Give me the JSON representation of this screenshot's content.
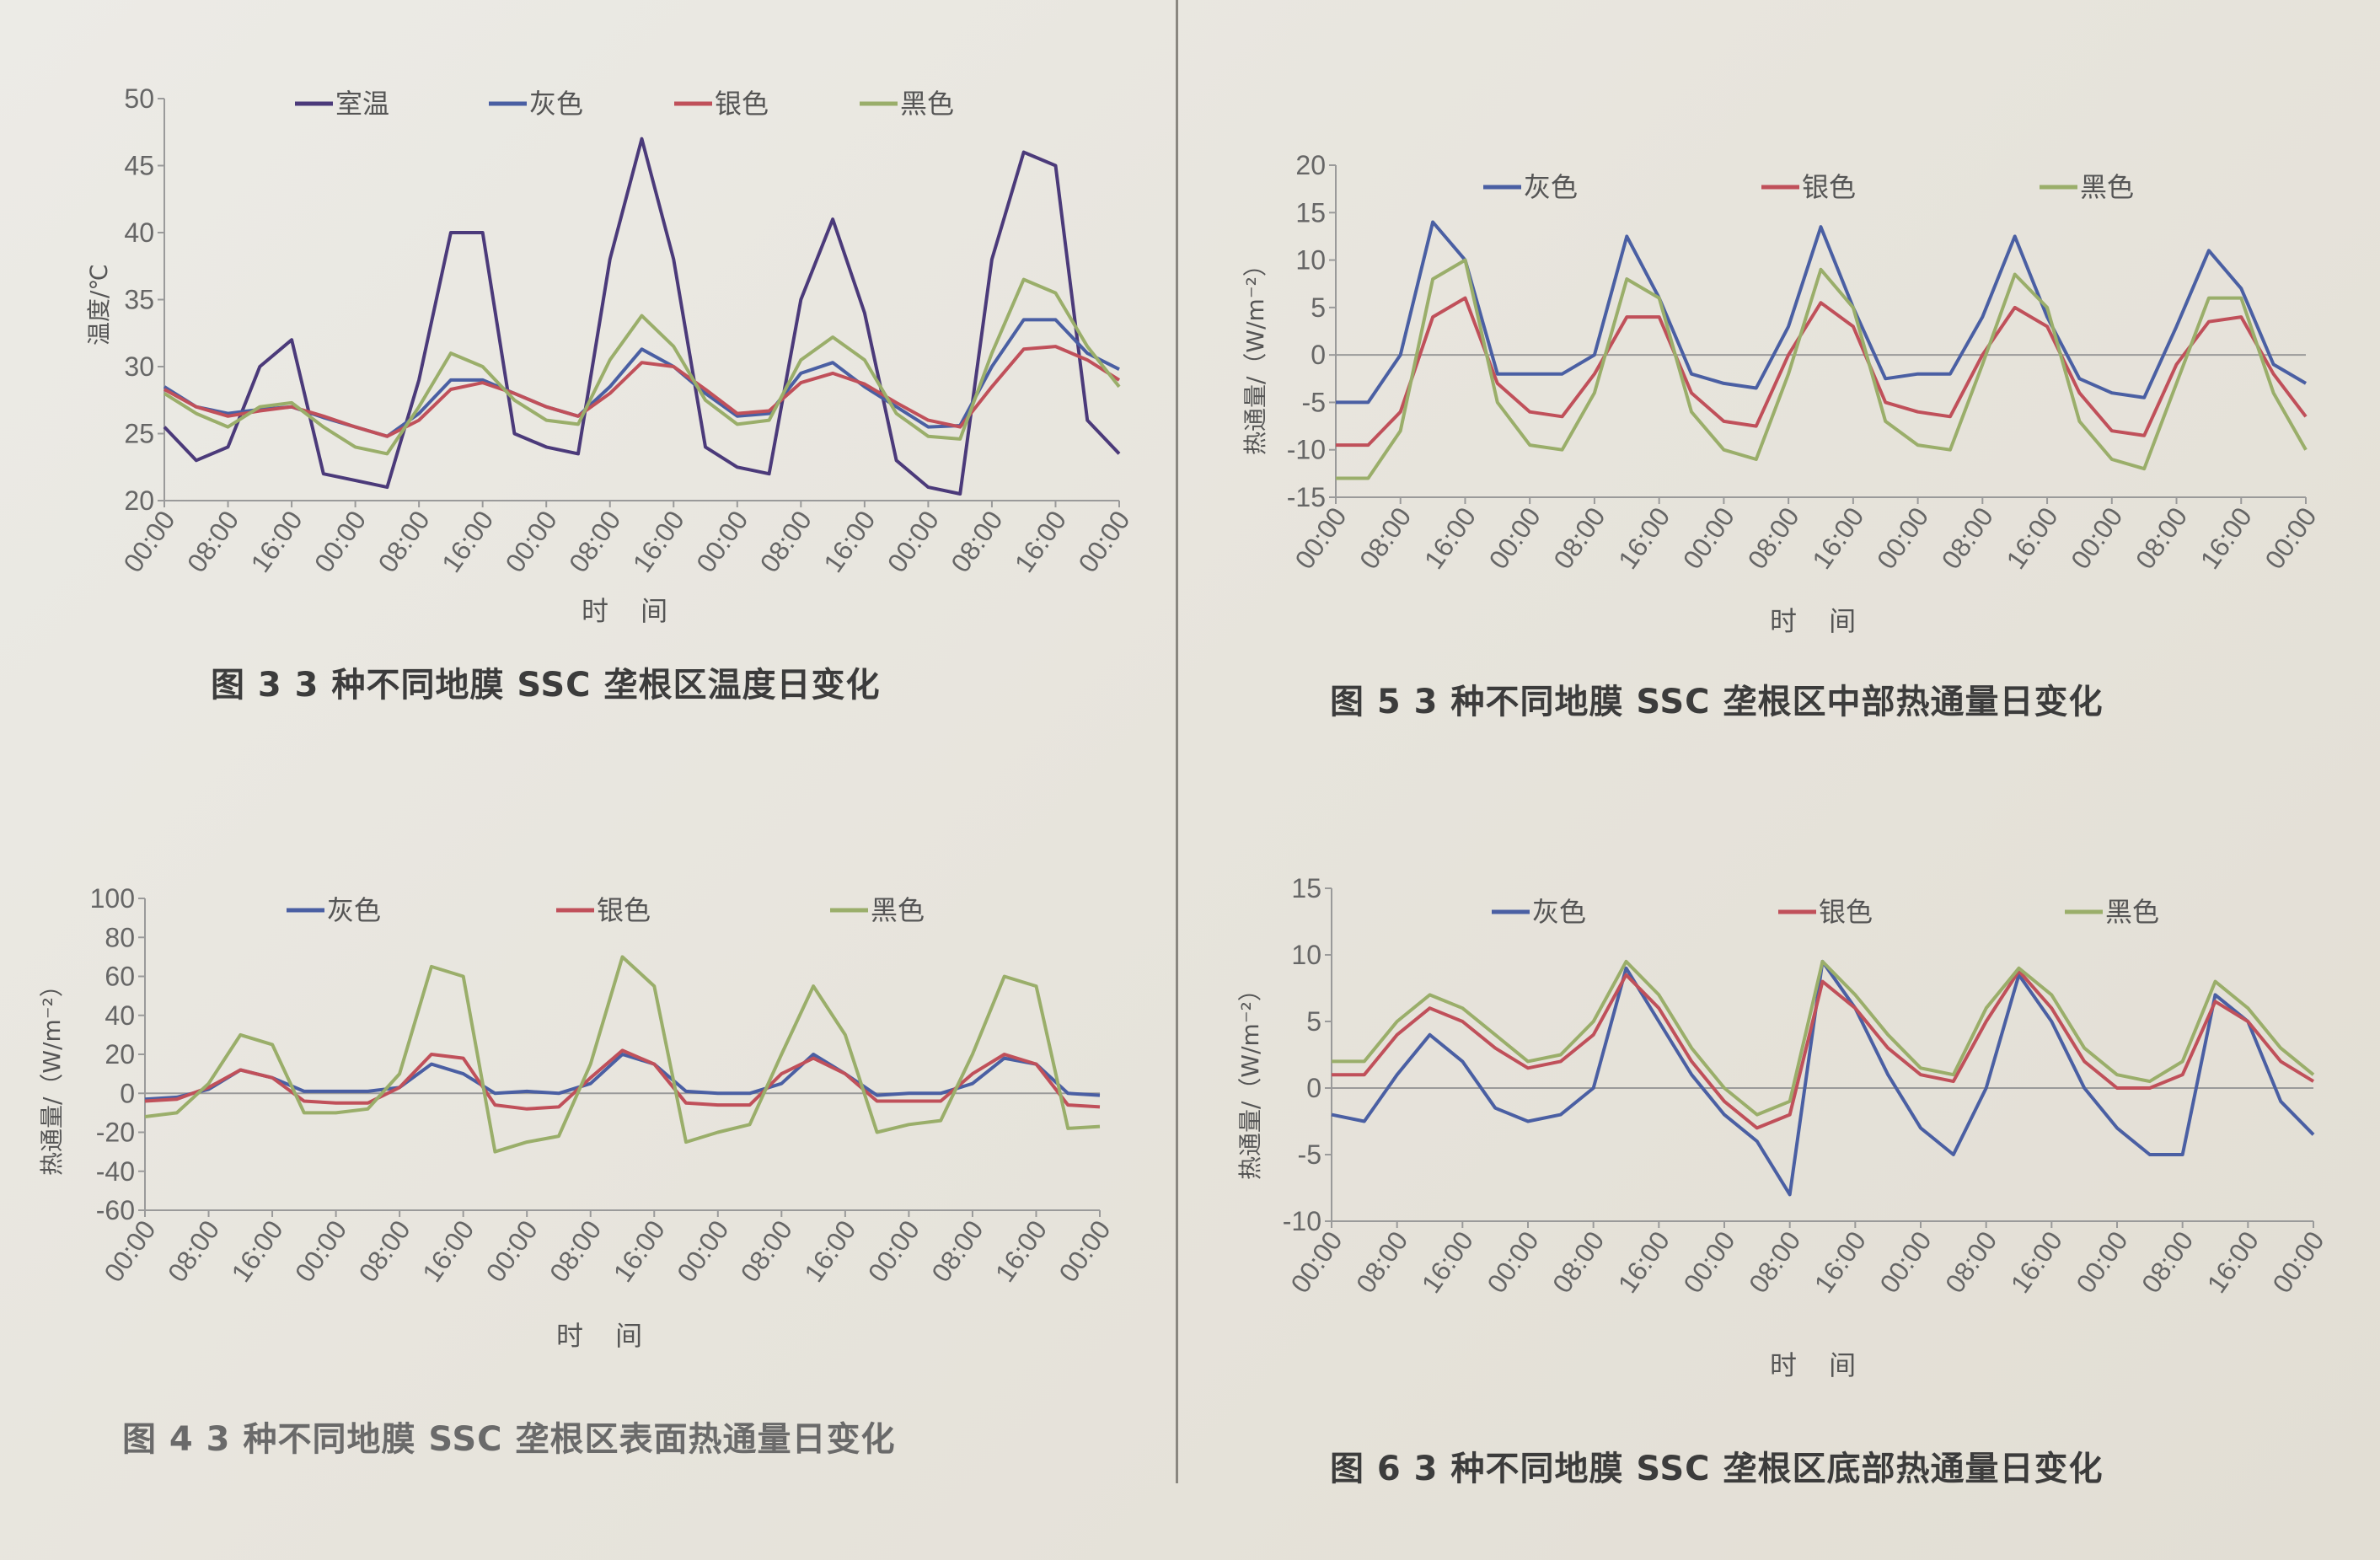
{
  "colors": {
    "室温": "#4b3a7a",
    "灰色": "#4a5fa3",
    "银色": "#c0505a",
    "黑色": "#9aae6a",
    "axis": "#9a9a9a"
  },
  "chart_data": [
    {
      "type": "line",
      "title": "图 3  3 种不同地膜 SSC 垄根区温度日变化",
      "xlabel": "时 间",
      "ylabel": "温度/℃",
      "ylim": [
        20,
        50
      ],
      "yticks": [
        20,
        25,
        30,
        35,
        40,
        45,
        50
      ],
      "x_hours": [
        0,
        4,
        8,
        12,
        16,
        20,
        24,
        28,
        32,
        36,
        40,
        44,
        48,
        52,
        56,
        60,
        64,
        68,
        72,
        76,
        80,
        84,
        88,
        92,
        96,
        100,
        104,
        108,
        112,
        116,
        120
      ],
      "xtick_labels": [
        "00:00",
        "08:00",
        "16:00",
        "00:00",
        "08:00",
        "16:00",
        "00:00",
        "08:00",
        "16:00",
        "00:00",
        "08:00",
        "16:00",
        "00:00",
        "08:00",
        "16:00",
        "00:00"
      ],
      "zero_line": false,
      "series": [
        {
          "name": "室温",
          "values": [
            25.5,
            23,
            24,
            30,
            32,
            22,
            21.5,
            21,
            29,
            40,
            40,
            25,
            24,
            23.5,
            38,
            47,
            38,
            24,
            22.5,
            22,
            35,
            41,
            34,
            23,
            21,
            20.5,
            38,
            46,
            45,
            26,
            23.5
          ]
        },
        {
          "name": "灰色",
          "values": [
            28.5,
            27,
            26.5,
            26.8,
            27,
            26.2,
            25.5,
            24.8,
            26.5,
            29,
            29,
            28,
            27,
            26.3,
            28.5,
            31.3,
            30,
            28,
            26.3,
            26.5,
            29.5,
            30.3,
            28.5,
            27,
            25.5,
            25.6,
            30,
            33.5,
            33.5,
            31,
            29.8
          ]
        },
        {
          "name": "银色",
          "values": [
            28.3,
            27,
            26.3,
            26.7,
            27,
            26.3,
            25.5,
            24.8,
            26,
            28.3,
            28.8,
            28,
            27,
            26.3,
            28,
            30.3,
            30,
            28.3,
            26.5,
            26.7,
            28.8,
            29.5,
            28.7,
            27.3,
            26,
            25.5,
            28.5,
            31.3,
            31.5,
            30.5,
            29
          ]
        },
        {
          "name": "黑色",
          "values": [
            28,
            26.5,
            25.5,
            27,
            27.3,
            25.5,
            24,
            23.5,
            27,
            31,
            30,
            27.5,
            26,
            25.7,
            30.5,
            33.8,
            31.5,
            27.5,
            25.7,
            26,
            30.5,
            32.2,
            30.5,
            26.5,
            24.8,
            24.6,
            31,
            36.5,
            35.5,
            31.5,
            28.5
          ]
        }
      ]
    },
    {
      "type": "line",
      "title": "图 4  3 种不同地膜 SSC 垄根区表面热通量日变化",
      "xlabel": "时 间",
      "ylabel": "热通量/（W/m⁻²）",
      "ylim": [
        -60,
        100
      ],
      "yticks": [
        -60,
        -40,
        -20,
        0,
        20,
        40,
        60,
        80,
        100
      ],
      "x_hours": [
        0,
        4,
        8,
        12,
        16,
        20,
        24,
        28,
        32,
        36,
        40,
        44,
        48,
        52,
        56,
        60,
        64,
        68,
        72,
        76,
        80,
        84,
        88,
        92,
        96,
        100,
        104,
        108,
        112,
        116,
        120
      ],
      "xtick_labels": [
        "00:00",
        "08:00",
        "16:00",
        "00:00",
        "08:00",
        "16:00",
        "00:00",
        "08:00",
        "16:00",
        "00:00",
        "08:00",
        "16:00",
        "00:00",
        "08:00",
        "16:00",
        "00:00"
      ],
      "zero_line": true,
      "series": [
        {
          "name": "灰色",
          "values": [
            -3,
            -2,
            2,
            12,
            8,
            1,
            1,
            1,
            3,
            15,
            10,
            0,
            1,
            0,
            5,
            20,
            15,
            1,
            0,
            0,
            5,
            20,
            10,
            -1,
            0,
            0,
            5,
            18,
            15,
            0,
            -1
          ]
        },
        {
          "name": "银色",
          "values": [
            -4,
            -3,
            3,
            12,
            8,
            -4,
            -5,
            -5,
            3,
            20,
            18,
            -6,
            -8,
            -7,
            8,
            22,
            15,
            -5,
            -6,
            -6,
            10,
            18,
            10,
            -4,
            -4,
            -4,
            10,
            20,
            15,
            -6,
            -7
          ]
        },
        {
          "name": "黑色",
          "values": [
            -12,
            -10,
            5,
            30,
            25,
            -10,
            -10,
            -8,
            10,
            65,
            60,
            -30,
            -25,
            -22,
            15,
            70,
            55,
            -25,
            -20,
            -16,
            20,
            55,
            30,
            -20,
            -16,
            -14,
            20,
            60,
            55,
            -18,
            -17
          ]
        }
      ]
    },
    {
      "type": "line",
      "title": "图 5  3 种不同地膜 SSC 垄根区中部热通量日变化",
      "xlabel": "时 间",
      "ylabel": "热通量/（W/m⁻²）",
      "ylim": [
        -15,
        20
      ],
      "yticks": [
        -15,
        -10,
        -5,
        0,
        5,
        10,
        15,
        20
      ],
      "x_hours": [
        0,
        4,
        8,
        12,
        16,
        20,
        24,
        28,
        32,
        36,
        40,
        44,
        48,
        52,
        56,
        60,
        64,
        68,
        72,
        76,
        80,
        84,
        88,
        92,
        96,
        100,
        104,
        108,
        112,
        116,
        120
      ],
      "xtick_labels": [
        "00:00",
        "08:00",
        "16:00",
        "00:00",
        "08:00",
        "16:00",
        "00:00",
        "08:00",
        "16:00",
        "00:00",
        "08:00",
        "16:00",
        "00:00",
        "08:00",
        "16:00",
        "00:00"
      ],
      "zero_line": true,
      "series": [
        {
          "name": "灰色",
          "values": [
            -5,
            -5,
            0,
            14,
            10,
            -2,
            -2,
            -2,
            0,
            12.5,
            6,
            -2,
            -3,
            -3.5,
            3,
            13.5,
            5,
            -2.5,
            -2,
            -2,
            4,
            12.5,
            4,
            -2.5,
            -4,
            -4.5,
            3,
            11,
            7,
            -1,
            -3
          ]
        },
        {
          "name": "银色",
          "values": [
            -9.5,
            -9.5,
            -6,
            4,
            6,
            -3,
            -6,
            -6.5,
            -2,
            4,
            4,
            -4,
            -7,
            -7.5,
            0,
            5.5,
            3,
            -5,
            -6,
            -6.5,
            0,
            5,
            3,
            -4,
            -8,
            -8.5,
            -1,
            3.5,
            4,
            -2,
            -6.5
          ]
        },
        {
          "name": "黑色",
          "values": [
            -13,
            -13,
            -8,
            8,
            10,
            -5,
            -9.5,
            -10,
            -4,
            8,
            6,
            -6,
            -10,
            -11,
            -2,
            9,
            5,
            -7,
            -9.5,
            -10,
            -1,
            8.5,
            5,
            -7,
            -11,
            -12,
            -3,
            6,
            6,
            -4,
            -10
          ]
        }
      ]
    },
    {
      "type": "line",
      "title": "图 6  3 种不同地膜 SSC 垄根区底部热通量日变化",
      "xlabel": "时 间",
      "ylabel": "热通量/（W/m⁻²）",
      "ylim": [
        -10,
        15
      ],
      "yticks": [
        -10,
        -5,
        0,
        5,
        10,
        15
      ],
      "x_hours": [
        0,
        4,
        8,
        12,
        16,
        20,
        24,
        28,
        32,
        36,
        40,
        44,
        48,
        52,
        56,
        60,
        64,
        68,
        72,
        76,
        80,
        84,
        88,
        92,
        96,
        100,
        104,
        108,
        112,
        116,
        120
      ],
      "xtick_labels": [
        "00:00",
        "08:00",
        "16:00",
        "00:00",
        "08:00",
        "16:00",
        "00:00",
        "08:00",
        "16:00",
        "00:00",
        "08:00",
        "16:00",
        "00:00",
        "08:00",
        "16:00",
        "00:00"
      ],
      "zero_line": true,
      "series": [
        {
          "name": "灰色",
          "values": [
            -2,
            -2.5,
            1,
            4,
            2,
            -1.5,
            -2.5,
            -2,
            0,
            9,
            5,
            1,
            -2,
            -4,
            -8,
            9.5,
            6,
            1,
            -3,
            -5,
            0,
            8.5,
            5,
            0,
            -3,
            -5,
            -5,
            7,
            5,
            -1,
            -3.5
          ]
        },
        {
          "name": "银色",
          "values": [
            1,
            1,
            4,
            6,
            5,
            3,
            1.5,
            2,
            4,
            8.5,
            6,
            2,
            -1,
            -3,
            -2,
            8,
            6,
            3,
            1,
            0.5,
            5,
            8.8,
            6,
            2,
            0,
            0,
            1,
            6.5,
            5,
            2,
            0.5
          ]
        },
        {
          "name": "黑色",
          "values": [
            2,
            2,
            5,
            7,
            6,
            4,
            2,
            2.5,
            5,
            9.5,
            7,
            3,
            0,
            -2,
            -1,
            9.5,
            7,
            4,
            1.5,
            1,
            6,
            9,
            7,
            3,
            1,
            0.5,
            2,
            8,
            6,
            3,
            1
          ]
        }
      ]
    }
  ]
}
